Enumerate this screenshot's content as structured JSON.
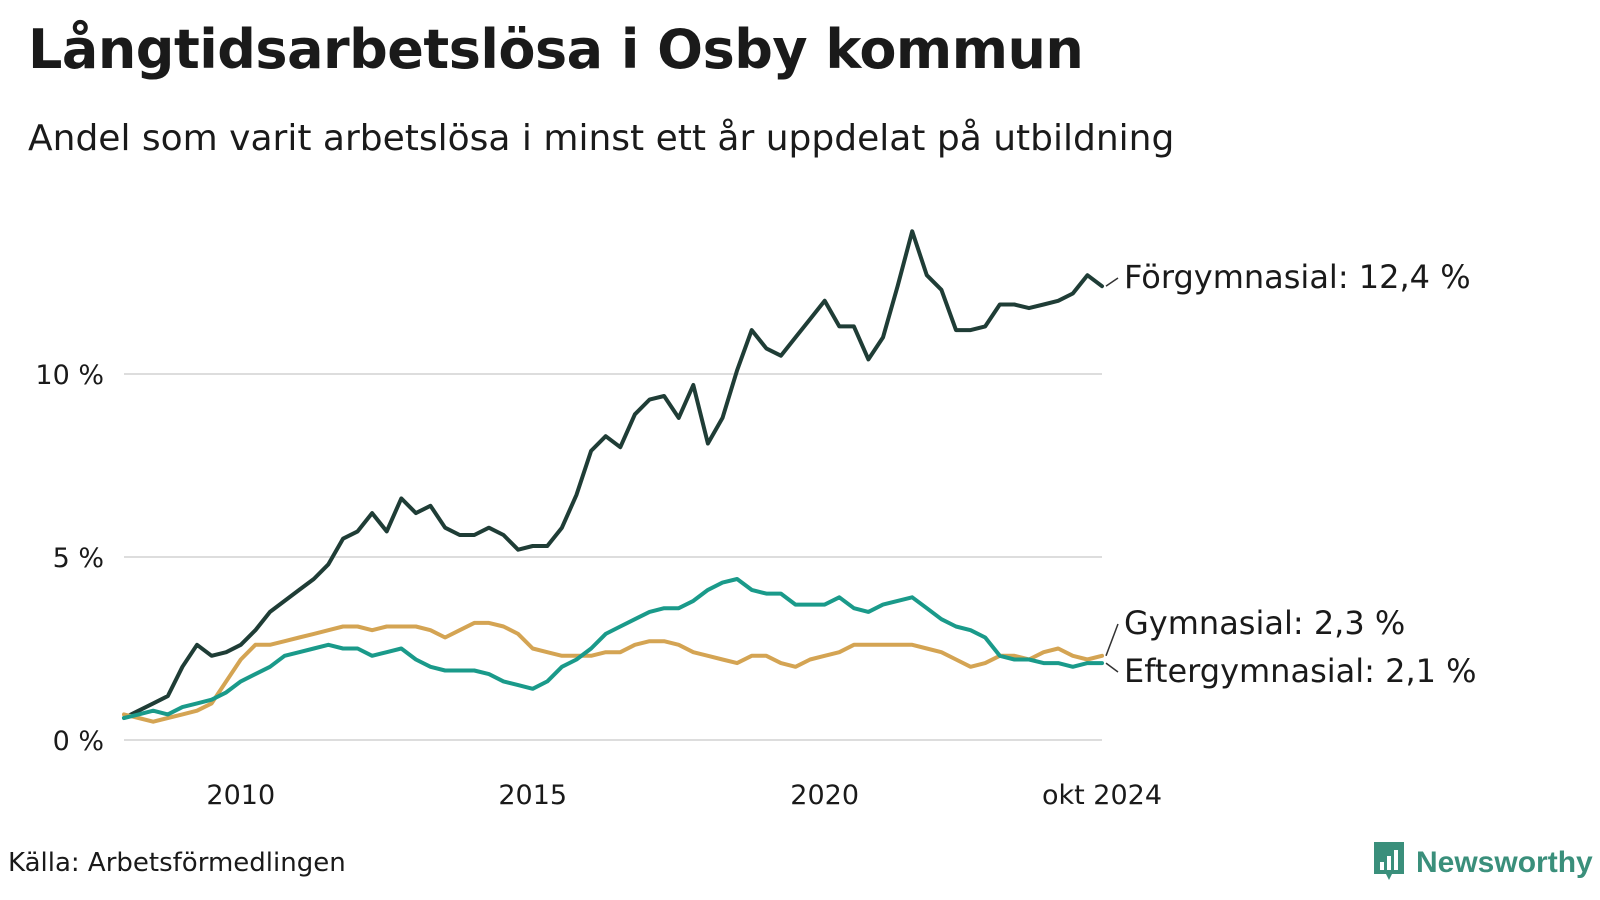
{
  "title": "Långtidsarbetslösa i Osby kommun",
  "subtitle": "Andel som varit arbetslösa i minst ett år uppdelat på utbildning",
  "source": "Källa: Arbetsförmedlingen",
  "brand": "Newsworthy",
  "brand_icon": "newsworthy-logo-icon",
  "colors": {
    "forgymnasial": "#1f3d36",
    "gymnasial": "#d4a453",
    "eftergymnasial": "#1a9a8a",
    "grid": "#dddddd",
    "brand": "#3a8f7b"
  },
  "chart_data": {
    "type": "line",
    "title": "Långtidsarbetslösa i Osby kommun",
    "subtitle": "Andel som varit arbetslösa i minst ett år uppdelat på utbildning",
    "x_label_ticks": [
      "2010",
      "2015",
      "2020",
      "okt 2024"
    ],
    "x_tick_values": [
      2010.0,
      2015.0,
      2020.0,
      2024.75
    ],
    "y_ticks": [
      0,
      5,
      10
    ],
    "y_tick_labels": [
      "0 %",
      "5 %",
      "10 %"
    ],
    "xlim": [
      2008.0,
      2024.75
    ],
    "ylim": [
      0,
      14
    ],
    "grid": true,
    "legend": "direct labels at line ends (right)",
    "series": [
      {
        "name": "Förgymnasial",
        "end_label": "Förgymnasial: 12,4 %",
        "color": "#1f3d36",
        "x": [
          2008.0,
          2008.25,
          2008.5,
          2008.75,
          2009.0,
          2009.25,
          2009.5,
          2009.75,
          2010.0,
          2010.25,
          2010.5,
          2010.75,
          2011.0,
          2011.25,
          2011.5,
          2011.75,
          2012.0,
          2012.25,
          2012.5,
          2012.75,
          2013.0,
          2013.25,
          2013.5,
          2013.75,
          2014.0,
          2014.25,
          2014.5,
          2014.75,
          2015.0,
          2015.25,
          2015.5,
          2015.75,
          2016.0,
          2016.25,
          2016.5,
          2016.75,
          2017.0,
          2017.25,
          2017.5,
          2017.75,
          2018.0,
          2018.25,
          2018.5,
          2018.75,
          2019.0,
          2019.25,
          2019.5,
          2019.75,
          2020.0,
          2020.25,
          2020.5,
          2020.75,
          2021.0,
          2021.25,
          2021.5,
          2021.75,
          2022.0,
          2022.25,
          2022.5,
          2022.75,
          2023.0,
          2023.25,
          2023.5,
          2023.75,
          2024.0,
          2024.25,
          2024.5,
          2024.75
        ],
        "y": [
          0.6,
          0.8,
          1.0,
          1.2,
          2.0,
          2.6,
          2.3,
          2.4,
          2.6,
          3.0,
          3.5,
          3.8,
          4.1,
          4.4,
          4.8,
          5.5,
          5.7,
          6.2,
          5.7,
          6.6,
          6.2,
          6.4,
          5.8,
          5.6,
          5.6,
          5.8,
          5.6,
          5.2,
          5.3,
          5.3,
          5.8,
          6.7,
          7.9,
          8.3,
          8.0,
          8.9,
          9.3,
          9.4,
          8.8,
          9.7,
          8.1,
          8.8,
          10.1,
          11.2,
          10.7,
          10.5,
          11.0,
          11.5,
          12.0,
          11.3,
          11.3,
          10.4,
          11.0,
          12.4,
          13.9,
          12.7,
          12.3,
          11.2,
          11.2,
          11.3,
          11.9,
          11.9,
          11.8,
          11.9,
          12.0,
          12.2,
          12.7,
          12.4
        ]
      },
      {
        "name": "Gymnasial",
        "end_label": "Gymnasial:  2,3 %",
        "color": "#d4a453",
        "x": [
          2008.0,
          2008.25,
          2008.5,
          2008.75,
          2009.0,
          2009.25,
          2009.5,
          2009.75,
          2010.0,
          2010.25,
          2010.5,
          2010.75,
          2011.0,
          2011.25,
          2011.5,
          2011.75,
          2012.0,
          2012.25,
          2012.5,
          2012.75,
          2013.0,
          2013.25,
          2013.5,
          2013.75,
          2014.0,
          2014.25,
          2014.5,
          2014.75,
          2015.0,
          2015.25,
          2015.5,
          2015.75,
          2016.0,
          2016.25,
          2016.5,
          2016.75,
          2017.0,
          2017.25,
          2017.5,
          2017.75,
          2018.0,
          2018.25,
          2018.5,
          2018.75,
          2019.0,
          2019.25,
          2019.5,
          2019.75,
          2020.0,
          2020.25,
          2020.5,
          2020.75,
          2021.0,
          2021.25,
          2021.5,
          2021.75,
          2022.0,
          2022.25,
          2022.5,
          2022.75,
          2023.0,
          2023.25,
          2023.5,
          2023.75,
          2024.0,
          2024.25,
          2024.5,
          2024.75
        ],
        "y": [
          0.7,
          0.6,
          0.5,
          0.6,
          0.7,
          0.8,
          1.0,
          1.6,
          2.2,
          2.6,
          2.6,
          2.7,
          2.8,
          2.9,
          3.0,
          3.1,
          3.1,
          3.0,
          3.1,
          3.1,
          3.1,
          3.0,
          2.8,
          3.0,
          3.2,
          3.2,
          3.1,
          2.9,
          2.5,
          2.4,
          2.3,
          2.3,
          2.3,
          2.4,
          2.4,
          2.6,
          2.7,
          2.7,
          2.6,
          2.4,
          2.3,
          2.2,
          2.1,
          2.3,
          2.3,
          2.1,
          2.0,
          2.2,
          2.3,
          2.4,
          2.6,
          2.6,
          2.6,
          2.6,
          2.6,
          2.5,
          2.4,
          2.2,
          2.0,
          2.1,
          2.3,
          2.3,
          2.2,
          2.4,
          2.5,
          2.3,
          2.2,
          2.3
        ]
      },
      {
        "name": "Eftergymnasial",
        "end_label": "Eftergymnasial:  2,1 %",
        "color": "#1a9a8a",
        "x": [
          2008.0,
          2008.25,
          2008.5,
          2008.75,
          2009.0,
          2009.25,
          2009.5,
          2009.75,
          2010.0,
          2010.25,
          2010.5,
          2010.75,
          2011.0,
          2011.25,
          2011.5,
          2011.75,
          2012.0,
          2012.25,
          2012.5,
          2012.75,
          2013.0,
          2013.25,
          2013.5,
          2013.75,
          2014.0,
          2014.25,
          2014.5,
          2014.75,
          2015.0,
          2015.25,
          2015.5,
          2015.75,
          2016.0,
          2016.25,
          2016.5,
          2016.75,
          2017.0,
          2017.25,
          2017.5,
          2017.75,
          2018.0,
          2018.25,
          2018.5,
          2018.75,
          2019.0,
          2019.25,
          2019.5,
          2019.75,
          2020.0,
          2020.25,
          2020.5,
          2020.75,
          2021.0,
          2021.25,
          2021.5,
          2021.75,
          2022.0,
          2022.25,
          2022.5,
          2022.75,
          2023.0,
          2023.25,
          2023.5,
          2023.75,
          2024.0,
          2024.25,
          2024.5,
          2024.75
        ],
        "y": [
          0.6,
          0.7,
          0.8,
          0.7,
          0.9,
          1.0,
          1.1,
          1.3,
          1.6,
          1.8,
          2.0,
          2.3,
          2.4,
          2.5,
          2.6,
          2.5,
          2.5,
          2.3,
          2.4,
          2.5,
          2.2,
          2.0,
          1.9,
          1.9,
          1.9,
          1.8,
          1.6,
          1.5,
          1.4,
          1.6,
          2.0,
          2.2,
          2.5,
          2.9,
          3.1,
          3.3,
          3.5,
          3.6,
          3.6,
          3.8,
          4.1,
          4.3,
          4.4,
          4.1,
          4.0,
          4.0,
          3.7,
          3.7,
          3.7,
          3.9,
          3.6,
          3.5,
          3.7,
          3.8,
          3.9,
          3.6,
          3.3,
          3.1,
          3.0,
          2.8,
          2.3,
          2.2,
          2.2,
          2.1,
          2.1,
          2.0,
          2.1,
          2.1
        ]
      }
    ]
  }
}
